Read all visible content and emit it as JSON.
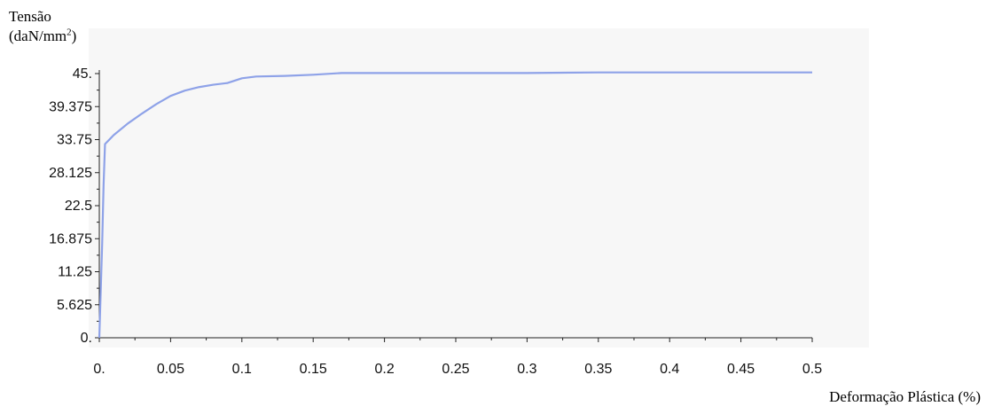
{
  "y_axis_title_line1": "Tensão",
  "y_axis_title_line2_base": "(daN/mm",
  "y_axis_title_line2_sup": "2",
  "y_axis_title_line2_close": ")",
  "x_axis_title": "Deformação Plástica (%)",
  "chart_data": {
    "type": "line",
    "title": "",
    "xlabel": "Deformação Plástica (%)",
    "ylabel": "Tensão (daN/mm2)",
    "xlim": [
      0,
      0.5
    ],
    "ylim": [
      0,
      45
    ],
    "x_ticks": [
      0,
      0.05,
      0.1,
      0.15,
      0.2,
      0.25,
      0.3,
      0.35,
      0.4,
      0.45,
      0.5
    ],
    "x_tick_labels": [
      "0.",
      "0.05",
      "0.1",
      "0.15",
      "0.2",
      "0.25",
      "0.3",
      "0.35",
      "0.4",
      "0.45",
      "0.5"
    ],
    "y_ticks": [
      0,
      5.625,
      11.25,
      16.875,
      22.5,
      28.125,
      33.75,
      39.375,
      45
    ],
    "y_tick_labels": [
      "0.",
      "5.625",
      "11.25",
      "16.875",
      "22.5",
      "28.125",
      "33.75",
      "39.375",
      "45."
    ],
    "grid": false,
    "line_color": "#8ea2e8",
    "series": [
      {
        "values": [
          [
            0,
            0
          ],
          [
            0.001,
            8
          ],
          [
            0.002,
            16
          ],
          [
            0.003,
            26
          ],
          [
            0.004,
            33
          ],
          [
            0.01,
            34.5
          ],
          [
            0.02,
            36.5
          ],
          [
            0.03,
            38.2
          ],
          [
            0.04,
            39.8
          ],
          [
            0.05,
            41.2
          ],
          [
            0.06,
            42.1
          ],
          [
            0.07,
            42.7
          ],
          [
            0.08,
            43.1
          ],
          [
            0.09,
            43.4
          ],
          [
            0.1,
            44.2
          ],
          [
            0.11,
            44.5
          ],
          [
            0.13,
            44.6
          ],
          [
            0.15,
            44.8
          ],
          [
            0.17,
            45.1
          ],
          [
            0.2,
            45.1
          ],
          [
            0.3,
            45.1
          ],
          [
            0.35,
            45.2
          ],
          [
            0.4,
            45.2
          ],
          [
            0.5,
            45.2
          ]
        ]
      }
    ]
  }
}
